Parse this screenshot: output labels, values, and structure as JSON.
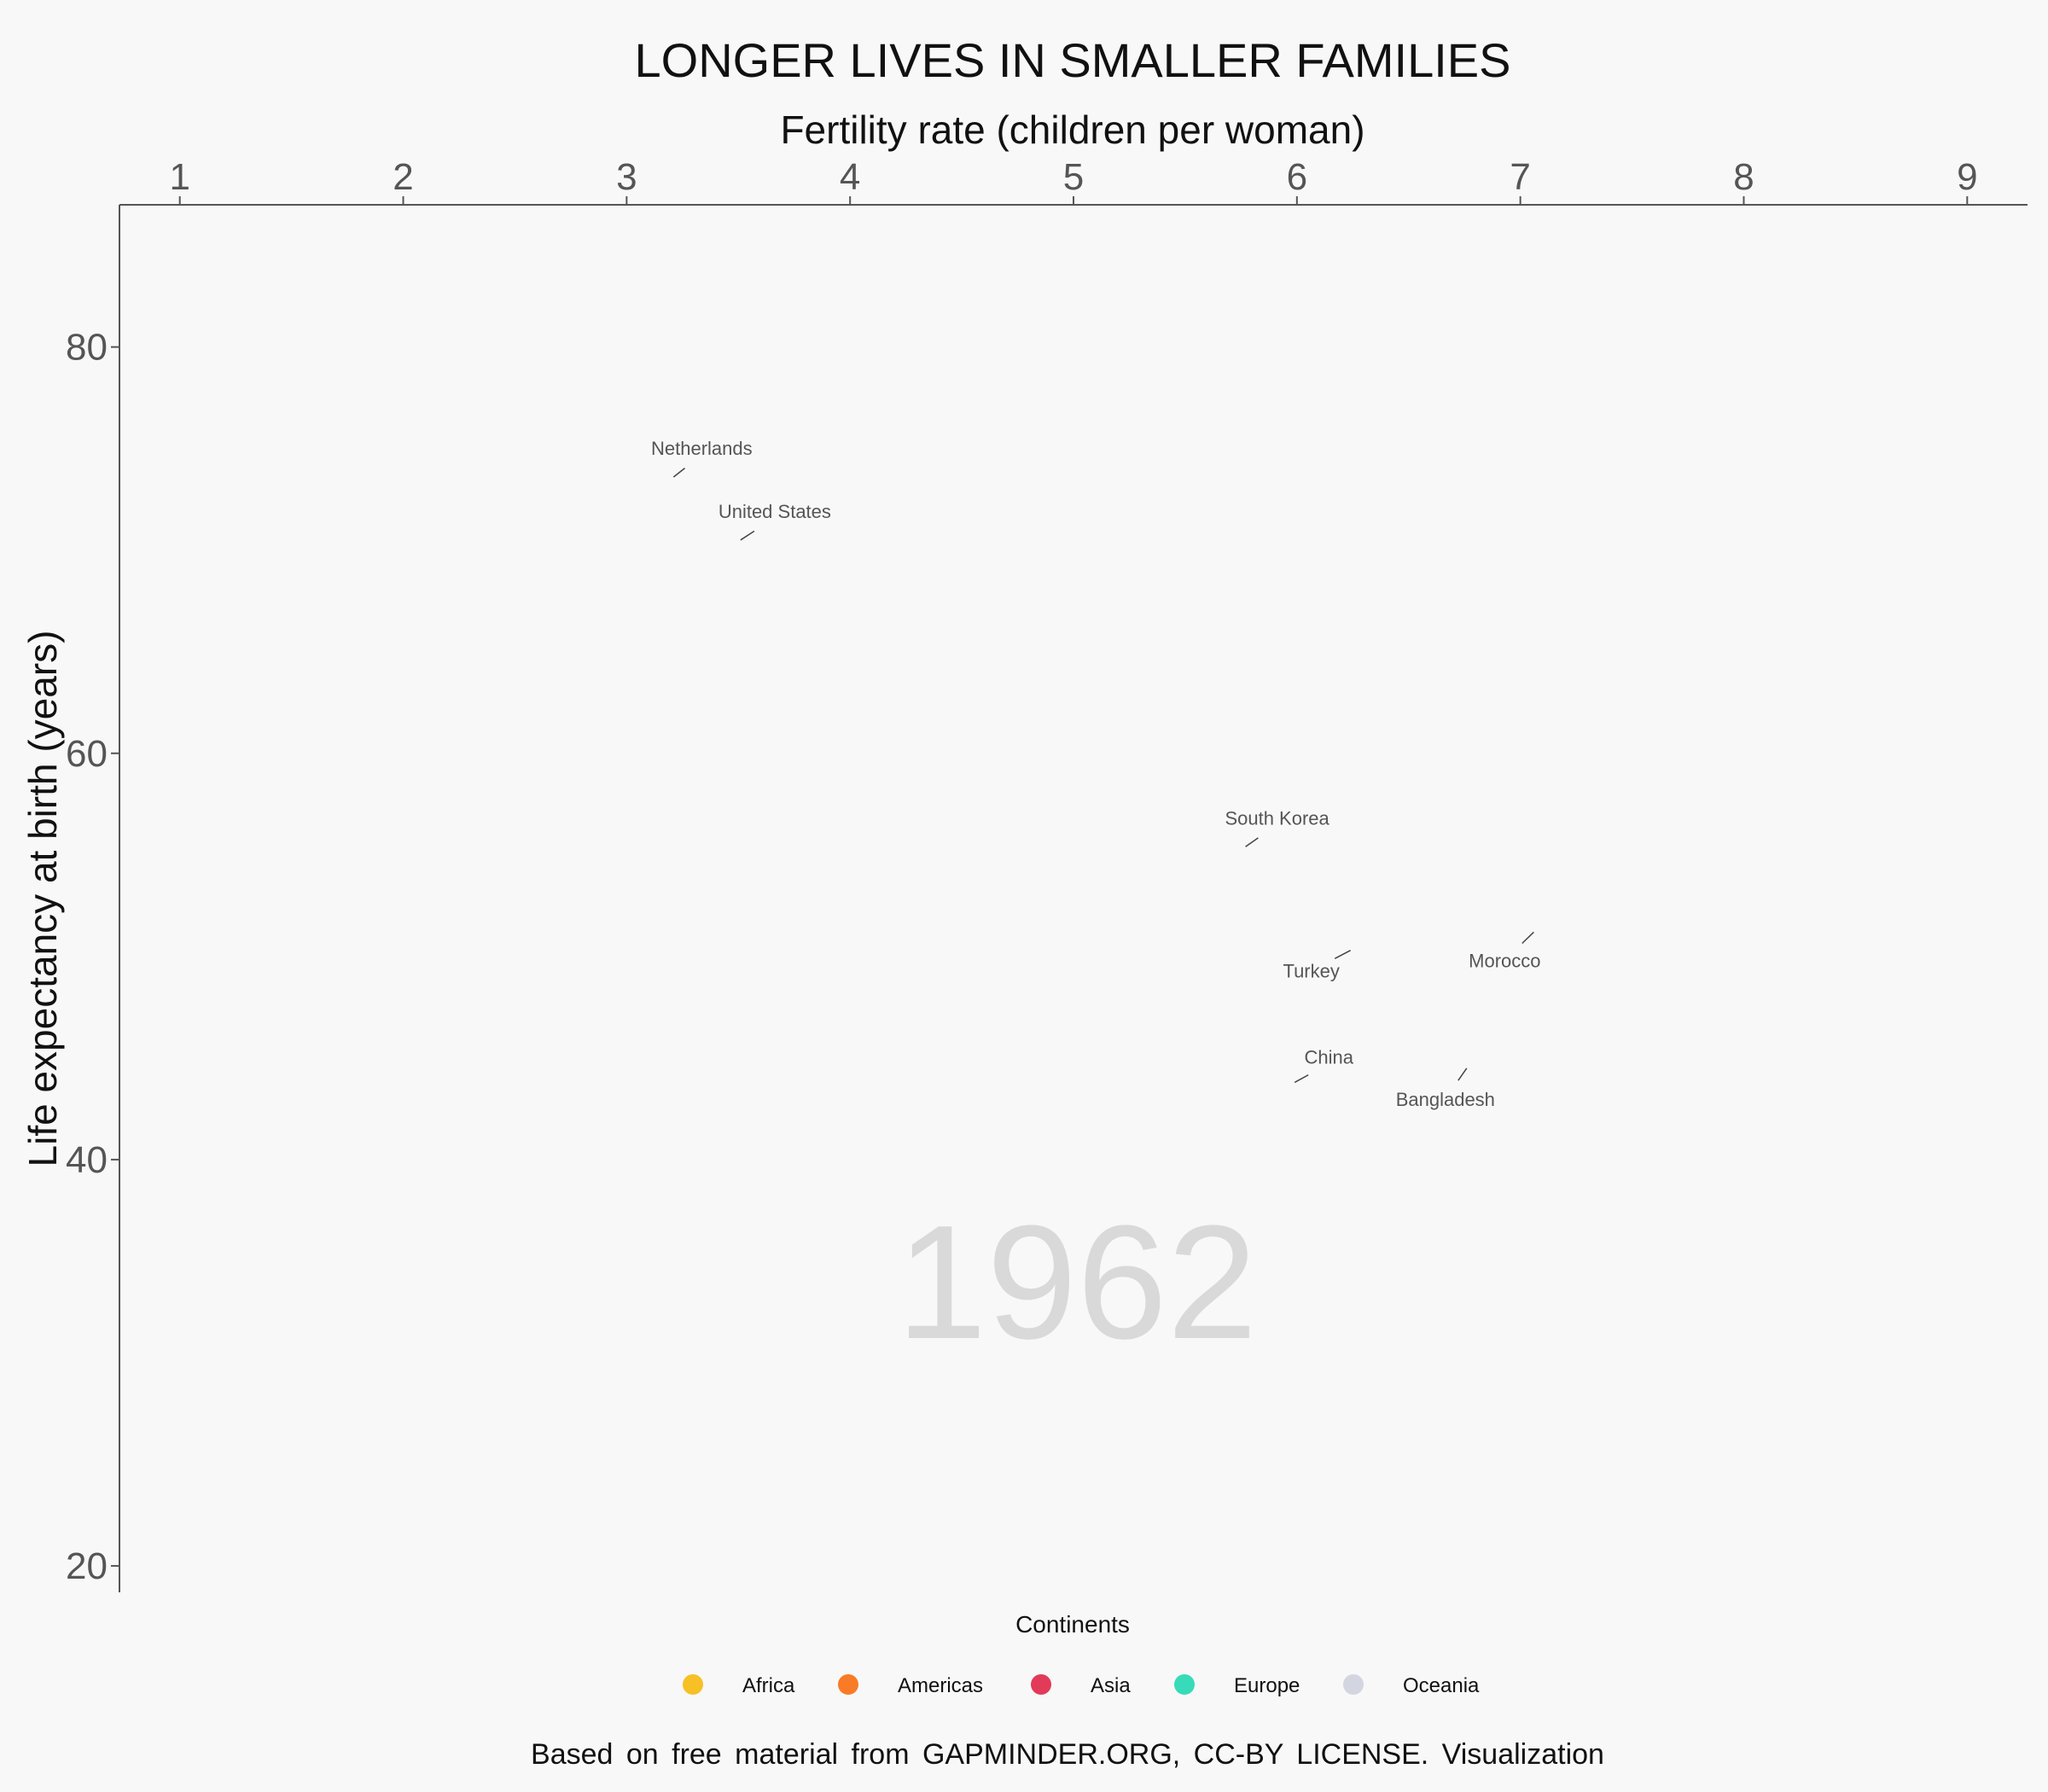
{
  "chart_data": {
    "type": "scatter",
    "title": "LONGER LIVES IN SMALLER FAMILIES",
    "xlabel": "Fertility rate (children per woman)",
    "ylabel": "Life expectancy at birth (years)",
    "x_ticks": [
      1,
      2,
      3,
      4,
      5,
      6,
      7,
      8,
      9
    ],
    "y_ticks": [
      20,
      40,
      60,
      80
    ],
    "xlim": [
      0.73,
      9.27
    ],
    "ylim": [
      18.7,
      87.0
    ],
    "x_axis_position": "top",
    "grid": false,
    "year": "1962",
    "labels": [
      {
        "name": "Netherlands",
        "x": 3.21,
        "y": 73.6
      },
      {
        "name": "United States",
        "x": 3.51,
        "y": 70.5
      },
      {
        "name": "South Korea",
        "x": 5.77,
        "y": 55.4
      },
      {
        "name": "Turkey",
        "x": 6.24,
        "y": 50.3
      },
      {
        "name": "Morocco",
        "x": 7.06,
        "y": 51.2
      },
      {
        "name": "China",
        "x": 5.99,
        "y": 43.8
      },
      {
        "name": "Bangladesh",
        "x": 6.76,
        "y": 44.5
      }
    ],
    "legend": {
      "title": "Continents",
      "placement": "bottom",
      "items": [
        {
          "label": "Africa",
          "color": "#f6c026"
        },
        {
          "label": "Americas",
          "color": "#f97b27"
        },
        {
          "label": "Asia",
          "color": "#e23a59"
        },
        {
          "label": "Europe",
          "color": "#37dbb9"
        },
        {
          "label": "Oceania",
          "color": "#d3d5e0"
        }
      ]
    },
    "caption": "Based on free material from GAPMINDER.ORG, CC-BY LICENSE. Visualization"
  }
}
